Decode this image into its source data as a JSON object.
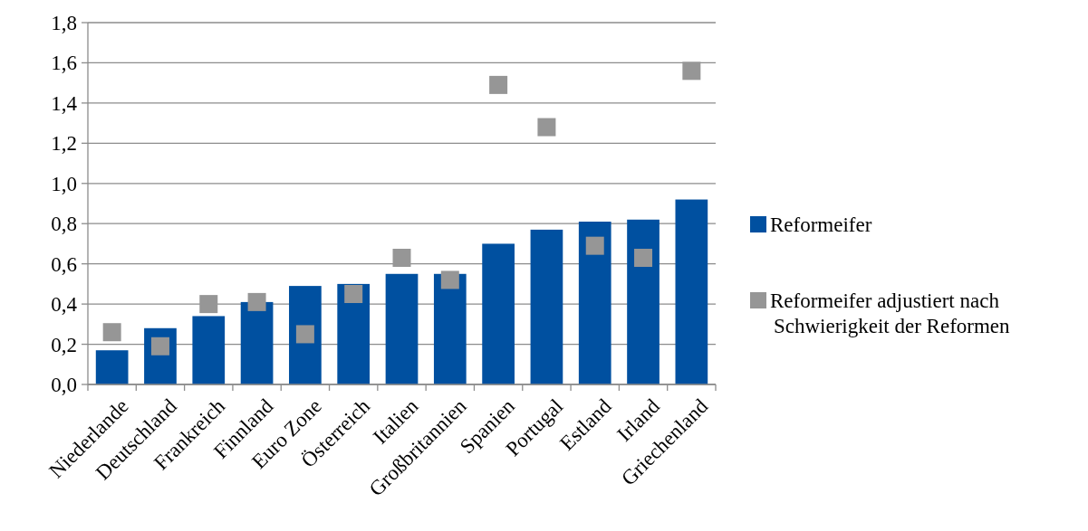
{
  "chart_data": {
    "type": "bar",
    "categories": [
      "Niederlande",
      "Deutschland",
      "Frankreich",
      "Finnland",
      "Euro Zone",
      "Österreich",
      "Italien",
      "Großbritannien",
      "Spanien",
      "Portugal",
      "Estland",
      "Irland",
      "Griechenland"
    ],
    "series": [
      {
        "name": "Reformeifer",
        "type": "bar",
        "color": "#0050a0",
        "values": [
          0.17,
          0.28,
          0.34,
          0.41,
          0.49,
          0.5,
          0.55,
          0.55,
          0.7,
          0.77,
          0.81,
          0.82,
          0.92
        ]
      },
      {
        "name": "Reformeifer adjustiert nach Schwierigkeit der Reformen",
        "type": "scatter",
        "color": "#969696",
        "x": [
          "Niederlande",
          "Deutschland",
          "Frankreich",
          "Finnland",
          "Euro Zone",
          "Österreich",
          "Italien",
          "Großbritannien",
          "Spanien",
          "Portugal",
          "Estland",
          "Irland",
          "Griechenland"
        ],
        "values": [
          0.26,
          0.19,
          0.4,
          0.41,
          0.25,
          0.45,
          0.63,
          0.52,
          1.49,
          1.28,
          0.69,
          0.63,
          1.56
        ]
      }
    ],
    "ylim": [
      0,
      1.8
    ],
    "yticks": [
      {
        "value": 0,
        "label": "0,0"
      },
      {
        "value": 0.2,
        "label": "0,2"
      },
      {
        "value": 0.4,
        "label": "0,4"
      },
      {
        "value": 0.6,
        "label": "0,6"
      },
      {
        "value": 0.8,
        "label": "0,8"
      },
      {
        "value": 1,
        "label": "1,0"
      },
      {
        "value": 1.2,
        "label": "1,2"
      },
      {
        "value": 1.4,
        "label": "1,4"
      },
      {
        "value": 1.6,
        "label": "1,6"
      },
      {
        "value": 1.8,
        "label": "1,8"
      }
    ],
    "grid": "y",
    "legend": "right",
    "marker": "square"
  }
}
